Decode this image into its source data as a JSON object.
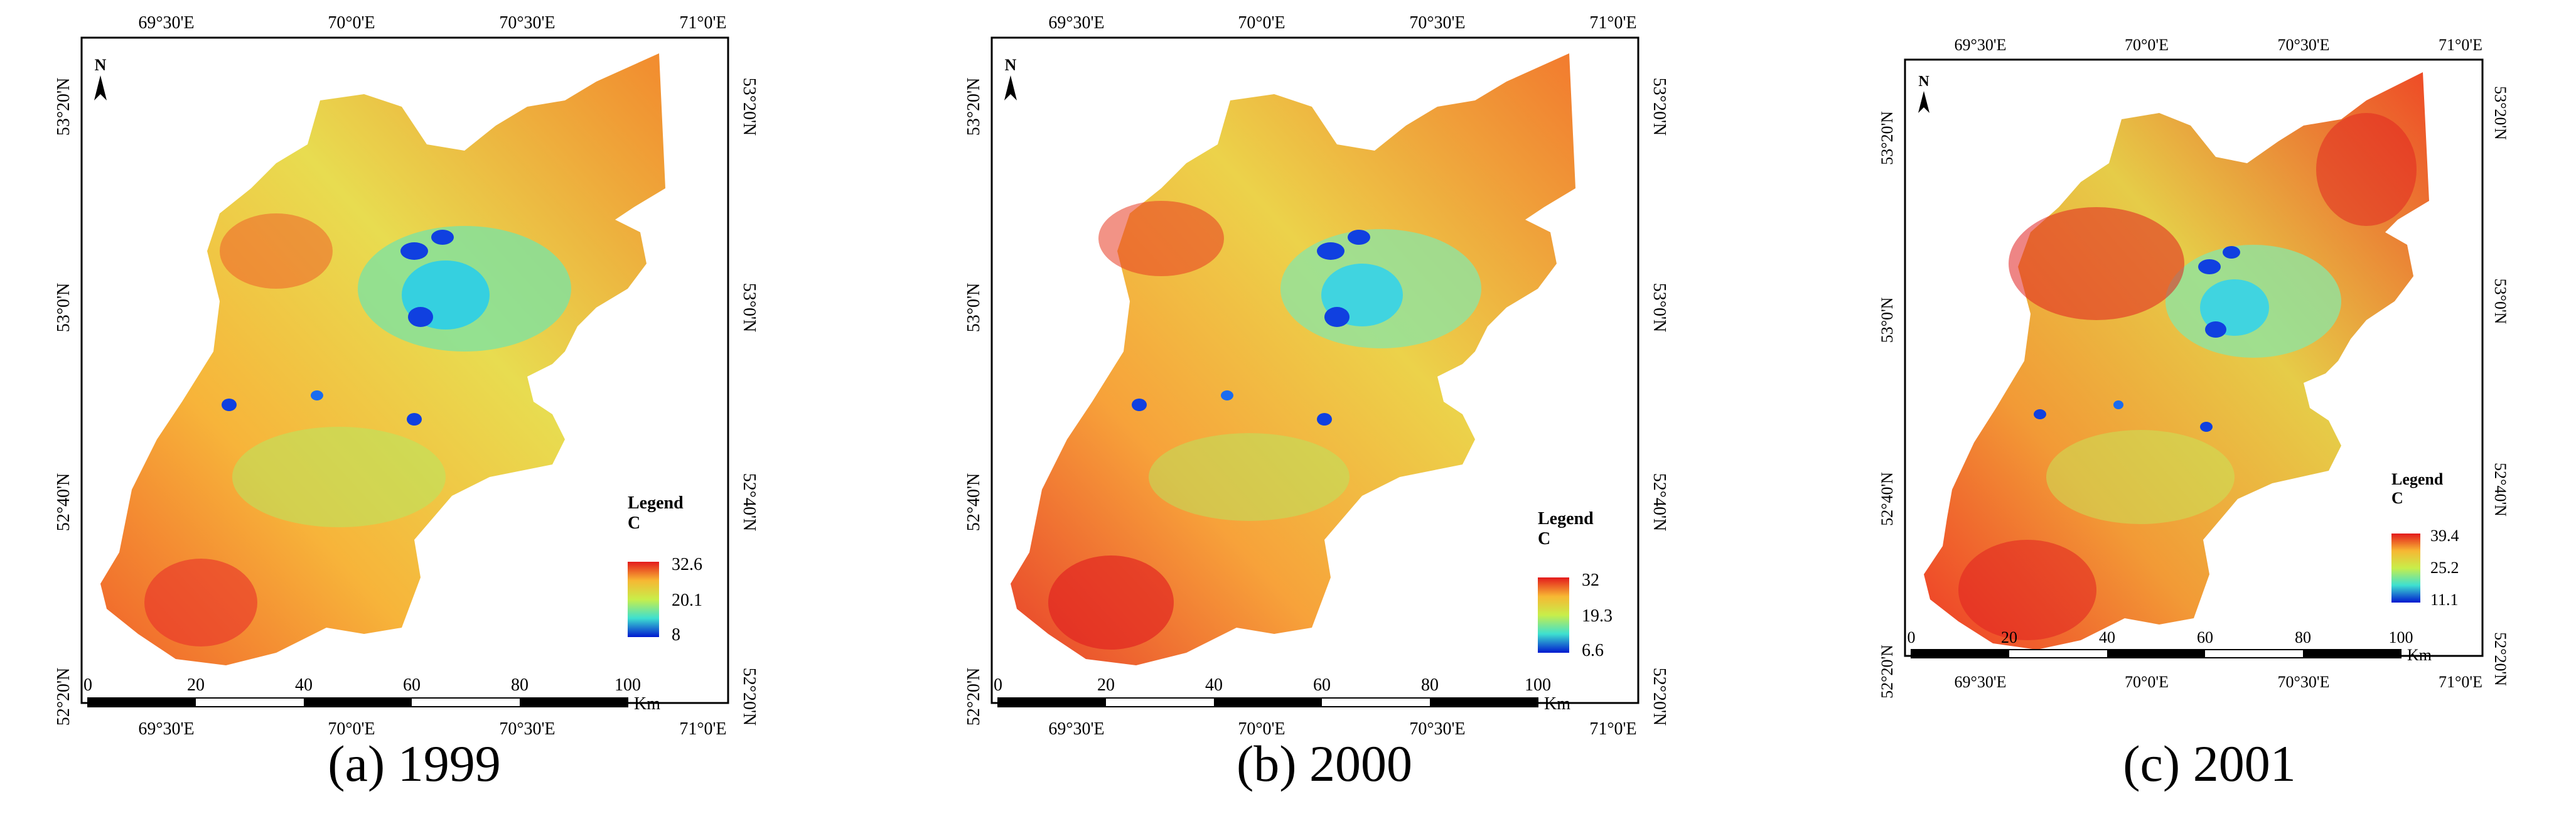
{
  "north_label": "N",
  "scale_units": "Km",
  "legend_title": "Legend",
  "legend_field": "C",
  "scale_ticks": [
    "0",
    "20",
    "40",
    "60",
    "80",
    "100"
  ],
  "top_lon_labels": [
    "69°30'E",
    "70°0'E",
    "70°30'E",
    "71°0'E"
  ],
  "bottom_lon_labels": [
    "69°30'E",
    "70°0'E",
    "70°30'E",
    "71°0'E"
  ],
  "left_lat_labels": [
    "53°20'N",
    "53°0'N",
    "52°40'N",
    "52°20'N"
  ],
  "right_lat_labels": [
    "53°20'N",
    "53°0'N",
    "52°40'N",
    "52°20'N"
  ],
  "color_ramp": [
    "#e31a1c",
    "#f97a16",
    "#f7dc33",
    "#86e85a",
    "#3ee0d0",
    "#1a8cf0",
    "#0012c8"
  ],
  "panels": [
    {
      "caption": "(a) 1999",
      "legend_max": "32.6",
      "legend_mid": "20.1",
      "legend_min": "8"
    },
    {
      "caption": "(b) 2000",
      "legend_max": "32",
      "legend_mid": "19.3",
      "legend_min": "6.6"
    },
    {
      "caption": "(c) 2001",
      "legend_max": "39.4",
      "legend_mid": "25.2",
      "legend_min": "11.1"
    }
  ]
}
